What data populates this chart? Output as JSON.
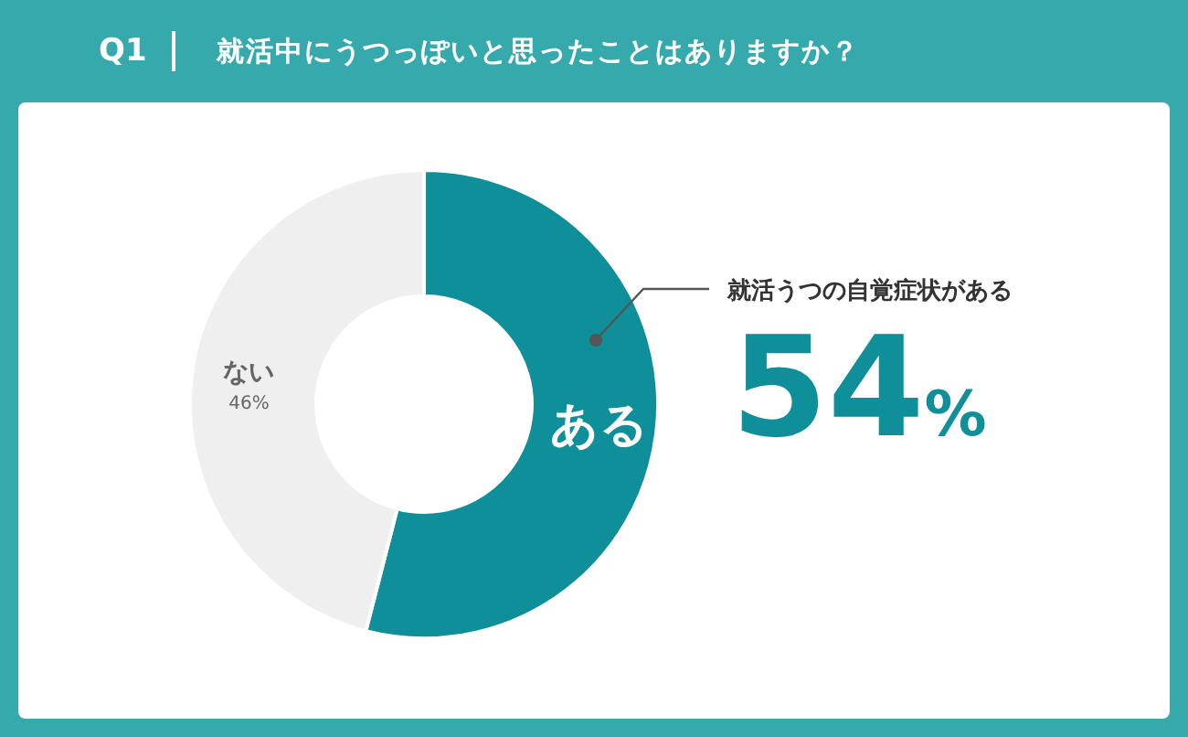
{
  "chart_data": {
    "type": "donut",
    "title": "Q1",
    "subtitle": "就活中にうつっぽいと思ったことはありますか？",
    "categories": [
      "ある",
      "ない"
    ],
    "values": [
      54,
      46
    ],
    "colors": [
      "#0f8f99",
      "#efefef"
    ],
    "value_labels": [
      null,
      "46%"
    ],
    "annotations": [
      "就活うつの自覚症状がある",
      "54%"
    ],
    "legend": false
  }
}
